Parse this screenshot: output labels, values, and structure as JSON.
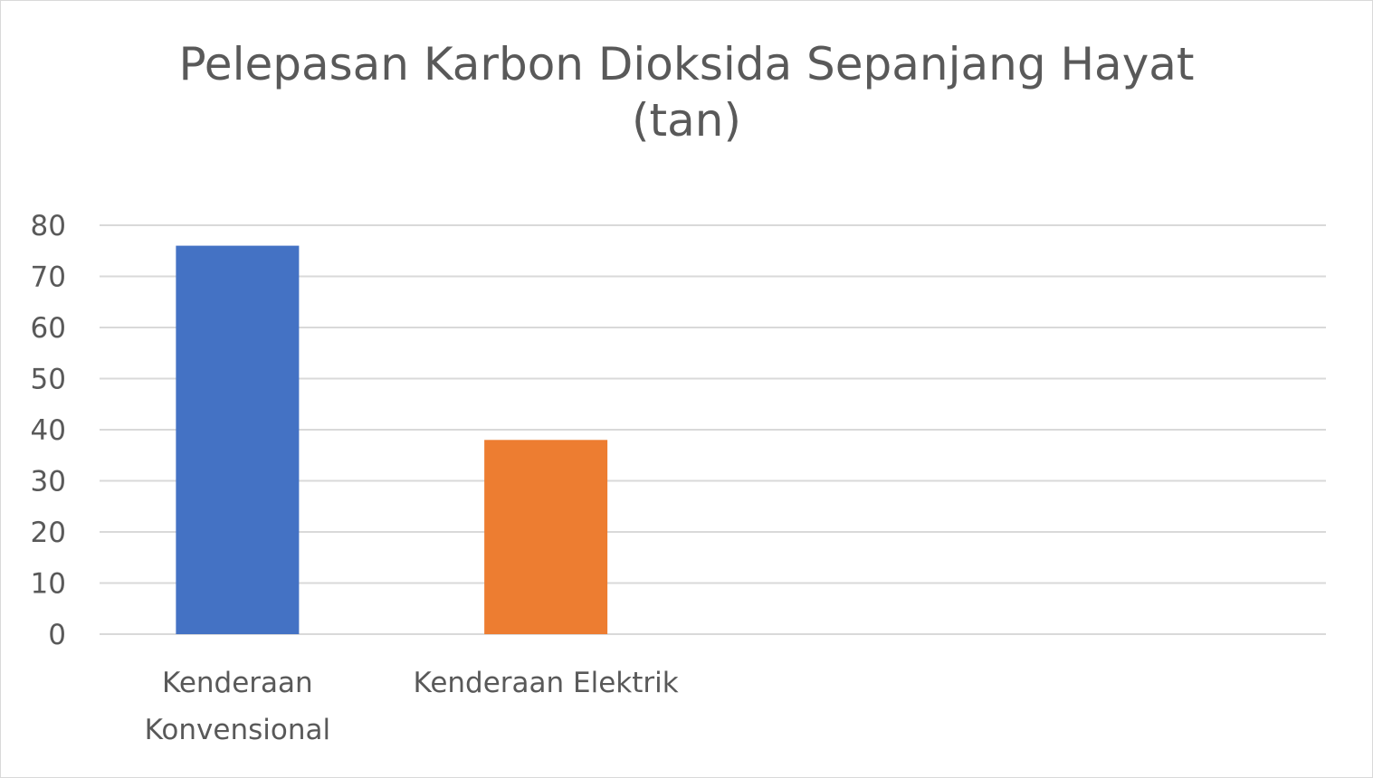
{
  "chart_data": {
    "type": "bar",
    "title_lines": [
      "Pelepasan Karbon Dioksida Sepanjang Hayat",
      "(tan)"
    ],
    "categories": [
      [
        "Kenderaan",
        "Konvensional"
      ],
      [
        "Kenderaan Elektrik"
      ]
    ],
    "values": [
      76,
      38
    ],
    "colors": [
      "#4472c4",
      "#ed7d31"
    ],
    "ylim": [
      0,
      80
    ],
    "yticks": [
      0,
      10,
      20,
      30,
      40,
      50,
      60,
      70,
      80
    ],
    "grid": true,
    "gridColor": "#d9d9d9",
    "xlabel": "",
    "ylabel": ""
  }
}
